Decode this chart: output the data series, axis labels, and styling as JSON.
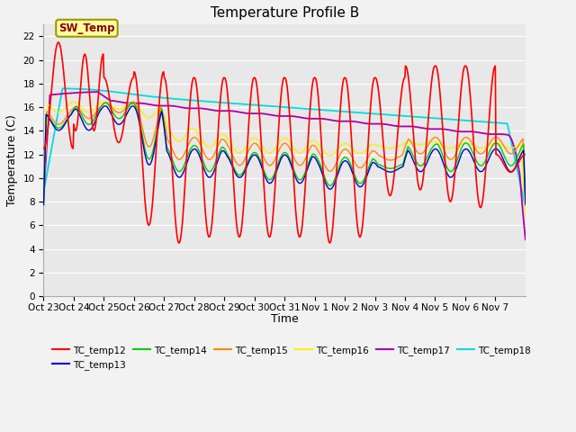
{
  "title": "Temperature Profile B",
  "xlabel": "Time",
  "ylabel": "Temperature (C)",
  "ylim": [
    0,
    23
  ],
  "yticks": [
    0,
    2,
    4,
    6,
    8,
    10,
    12,
    14,
    16,
    18,
    20,
    22
  ],
  "x_labels": [
    "Oct 23",
    "Oct 24",
    "Oct 25",
    "Oct 26",
    "Oct 27",
    "Oct 28",
    "Oct 29",
    "Oct 30",
    "Oct 31",
    "Nov 1",
    "Nov 2",
    "Nov 3",
    "Nov 4",
    "Nov 5",
    "Nov 6",
    "Nov 7"
  ],
  "sw_temp_label": "SW_Temp",
  "legend_entries": [
    "TC_temp12",
    "TC_temp13",
    "TC_temp14",
    "TC_temp15",
    "TC_temp16",
    "TC_temp17",
    "TC_temp18"
  ],
  "line_colors": {
    "TC_temp12": "#FF0000",
    "TC_temp13": "#0000CC",
    "TC_temp14": "#00CC00",
    "TC_temp15": "#FF8800",
    "TC_temp16": "#FFEE00",
    "TC_temp17": "#AA00AA",
    "TC_temp18": "#00DDDD"
  },
  "fig_bg": "#F2F2F2",
  "plot_bg": "#E8E8E8",
  "grid_color": "#FFFFFF",
  "title_fontsize": 11,
  "axis_label_fontsize": 9,
  "tick_fontsize": 7.5
}
